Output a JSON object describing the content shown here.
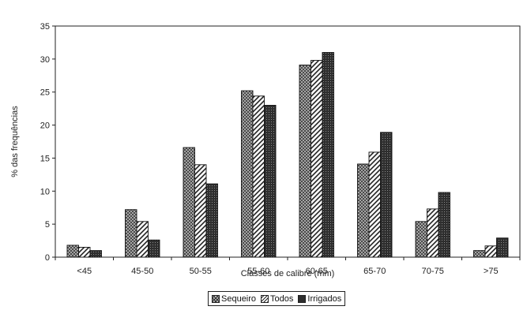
{
  "chart_data": {
    "type": "bar",
    "categories": [
      "<45",
      "45-50",
      "50-55",
      "55-60",
      "60-65",
      "65-70",
      "70-75",
      ">75"
    ],
    "series": [
      {
        "name": "Sequeiro",
        "values": [
          1.8,
          7.2,
          16.6,
          25.2,
          29.1,
          14.1,
          5.4,
          1.0
        ]
      },
      {
        "name": "Todos",
        "values": [
          1.5,
          5.4,
          14.0,
          24.4,
          29.8,
          15.9,
          7.3,
          1.7
        ]
      },
      {
        "name": "Irrigados",
        "values": [
          1.0,
          2.6,
          11.1,
          23.0,
          31.0,
          18.9,
          9.8,
          2.9
        ]
      }
    ],
    "title": "",
    "xlabel": "Classes de calibre (mm)",
    "ylabel": "% das frequências",
    "ylim": [
      0,
      35
    ],
    "yticks": [
      0,
      5,
      10,
      15,
      20,
      25,
      30,
      35
    ],
    "grid": false,
    "legend_position": "bottom",
    "colors": {
      "Sequeiro": "#9a9a9a",
      "Todos": "#ffffff",
      "Irrigados": "#3a3a3a"
    }
  }
}
